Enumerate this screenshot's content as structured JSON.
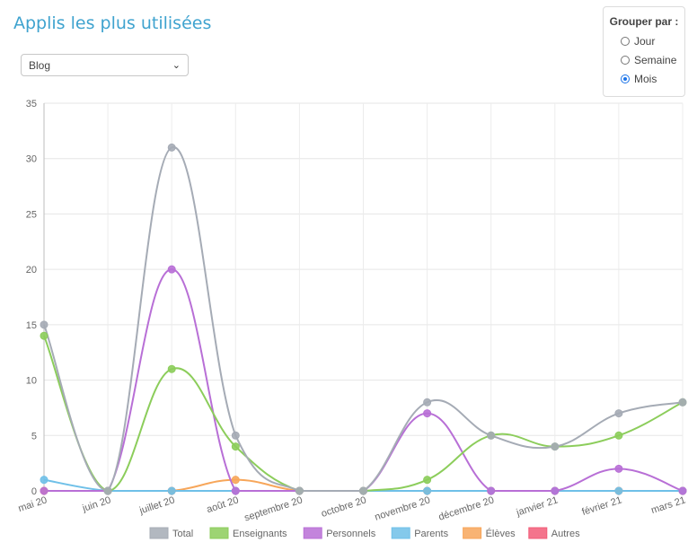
{
  "header": {
    "title": "Applis les plus utilisées"
  },
  "app_select": {
    "value": "Blog"
  },
  "group_by": {
    "title": "Grouper par :",
    "options": [
      {
        "label": "Jour",
        "checked": false
      },
      {
        "label": "Semaine",
        "checked": false
      },
      {
        "label": "Mois",
        "checked": true
      }
    ]
  },
  "chart_data": {
    "type": "line",
    "title": "",
    "xlabel": "",
    "ylabel": "",
    "ylim": [
      0,
      35
    ],
    "yticks": [
      0,
      5,
      10,
      15,
      20,
      25,
      30,
      35
    ],
    "grid": true,
    "legend_position": "bottom",
    "categories": [
      "mai 20",
      "juin 20",
      "juillet 20",
      "août 20",
      "septembre 20",
      "octobre 20",
      "novembre 20",
      "décembre 20",
      "janvier 21",
      "février 21",
      "mars 21"
    ],
    "series": [
      {
        "name": "Total",
        "color": "#a5abb5",
        "values": [
          15,
          0,
          31,
          5,
          0,
          0,
          8,
          5,
          4,
          7,
          8
        ]
      },
      {
        "name": "Enseignants",
        "color": "#8ccd5b",
        "values": [
          14,
          0,
          11,
          4,
          0,
          0,
          1,
          5,
          4,
          5,
          8
        ]
      },
      {
        "name": "Personnels",
        "color": "#b86fd6",
        "values": [
          0,
          0,
          20,
          0,
          0,
          0,
          7,
          0,
          0,
          2,
          0
        ]
      },
      {
        "name": "Parents",
        "color": "#6fc0e8",
        "values": [
          1,
          0,
          0,
          0,
          0,
          0,
          0,
          0,
          0,
          0,
          0
        ]
      },
      {
        "name": "Élèves",
        "color": "#f7a65a",
        "values": [
          0,
          0,
          0,
          1,
          0,
          0,
          0,
          0,
          0,
          0,
          0
        ]
      },
      {
        "name": "Autres",
        "color": "#f25c78",
        "values": [
          0,
          0,
          0,
          0,
          0,
          0,
          0,
          0,
          0,
          0,
          0
        ]
      }
    ]
  }
}
